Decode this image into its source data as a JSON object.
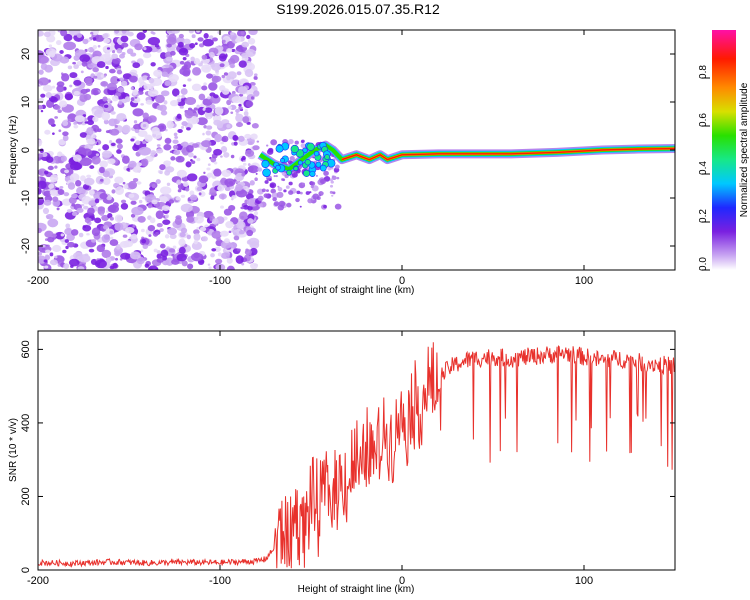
{
  "chart_data": [
    {
      "type": "heatmap",
      "title": "S199.2026.015.07.35.R12",
      "xlabel": "Height of straight line (km)",
      "ylabel": "Frequency (Hz)",
      "xlim": [
        -200,
        150
      ],
      "ylim": [
        -25,
        25
      ],
      "x_ticks": [
        -200,
        -100,
        0,
        100
      ],
      "y_ticks": [
        -20,
        -10,
        0,
        10,
        20
      ],
      "noise_region_x": [
        -200,
        -80
      ],
      "transition_region_x": [
        -80,
        -35
      ],
      "tone_track": [
        {
          "x": -78,
          "y": -1
        },
        {
          "x": -70,
          "y": -3
        },
        {
          "x": -62,
          "y": -4
        },
        {
          "x": -55,
          "y": -2
        },
        {
          "x": -48,
          "y": 0
        },
        {
          "x": -42,
          "y": 1
        },
        {
          "x": -38,
          "y": 0
        },
        {
          "x": -33,
          "y": -2
        },
        {
          "x": -25,
          "y": -1
        },
        {
          "x": -18,
          "y": -2
        },
        {
          "x": -12,
          "y": -1
        },
        {
          "x": -8,
          "y": -2
        },
        {
          "x": 0,
          "y": -1
        },
        {
          "x": 20,
          "y": -0.8
        },
        {
          "x": 60,
          "y": -0.8
        },
        {
          "x": 85,
          "y": -0.5
        },
        {
          "x": 110,
          "y": 0
        },
        {
          "x": 130,
          "y": 0.2
        },
        {
          "x": 150,
          "y": 0.3
        }
      ],
      "colorbar": {
        "label": "Normalized spectral amplitude",
        "ticks": [
          "0.0",
          "0.2",
          "0.4",
          "0.6",
          "0.8"
        ],
        "range": [
          0,
          1
        ],
        "colors": [
          "#ffffff",
          "#c9a6f2",
          "#7a20e0",
          "#1f28ff",
          "#00c8ff",
          "#17e887",
          "#29e000",
          "#d8e000",
          "#ff8a00",
          "#ff1a00",
          "#ff0fa6"
        ]
      }
    },
    {
      "type": "line",
      "title": "",
      "xlabel": "Height of straight line (km)",
      "ylabel": "SNR (10 * v/v)",
      "xlim": [
        -200,
        150
      ],
      "ylim": [
        0,
        650
      ],
      "x_ticks": [
        -200,
        -100,
        0,
        100
      ],
      "y_ticks": [
        0,
        200,
        400,
        600
      ],
      "line_color": "#e8312c",
      "series": [
        {
          "name": "SNR",
          "x": [
            -200,
            -180,
            -160,
            -140,
            -120,
            -100,
            -90,
            -80,
            -75,
            -70,
            -66,
            -62,
            -58,
            -54,
            -50,
            -46,
            -42,
            -38,
            -34,
            -30,
            -26,
            -22,
            -18,
            -14,
            -10,
            -6,
            -2,
            2,
            6,
            10,
            14,
            18,
            22,
            26,
            30,
            35,
            40,
            50,
            60,
            70,
            80,
            90,
            100,
            110,
            120,
            130,
            140,
            150
          ],
          "y": [
            20,
            18,
            22,
            19,
            21,
            20,
            22,
            24,
            30,
            60,
            120,
            80,
            160,
            110,
            200,
            150,
            230,
            180,
            260,
            230,
            300,
            250,
            340,
            300,
            380,
            350,
            420,
            400,
            460,
            440,
            500,
            480,
            530,
            550,
            560,
            570,
            575,
            580,
            575,
            580,
            585,
            590,
            580,
            570,
            575,
            565,
            560,
            555
          ]
        }
      ]
    }
  ]
}
